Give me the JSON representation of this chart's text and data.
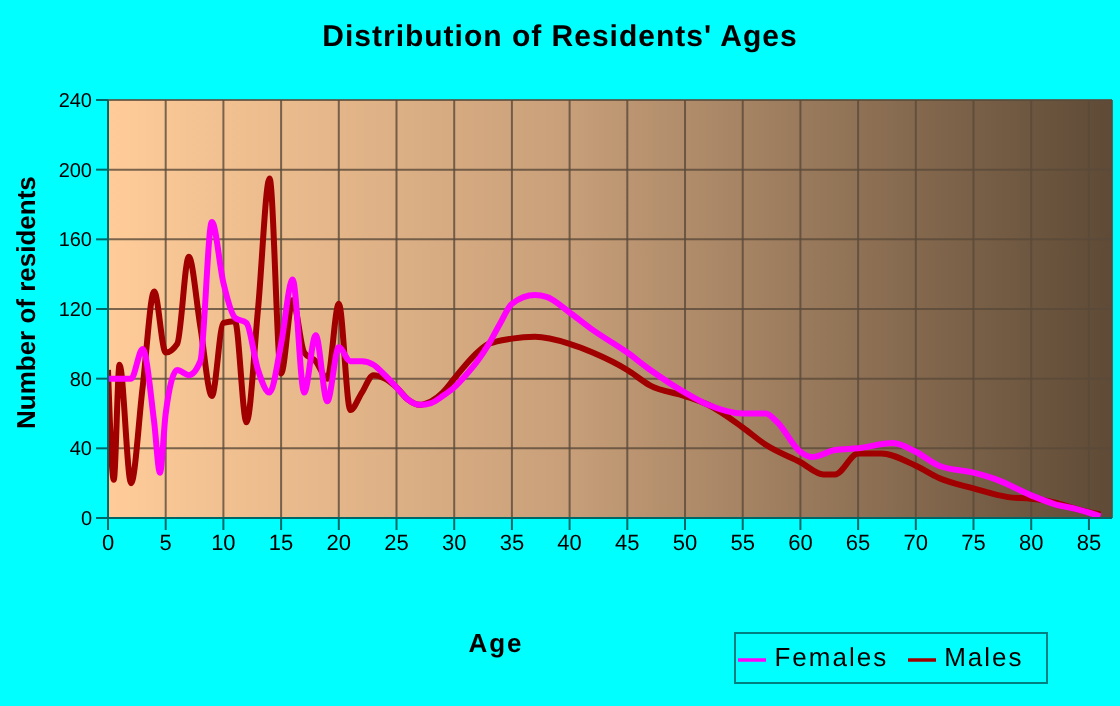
{
  "chart_data": {
    "type": "line",
    "title": "Distribution of Residents' Ages",
    "xlabel": "Age",
    "ylabel": "Number of residents",
    "xlim": [
      0,
      87
    ],
    "xticks": [
      0,
      5,
      10,
      15,
      20,
      25,
      30,
      35,
      40,
      45,
      50,
      55,
      60,
      65,
      70,
      75,
      80,
      85
    ],
    "ylim": [
      0,
      240
    ],
    "yticks": [
      0,
      40,
      80,
      120,
      160,
      200,
      240
    ],
    "grid": true,
    "legend": "bottom right",
    "marker": "none",
    "line_style": "solid",
    "series": [
      {
        "name": "Males",
        "color": "#a00000",
        "x": [
          0,
          0.5,
          1,
          2,
          3,
          4,
          5,
          6,
          7,
          8,
          9,
          10,
          11,
          12,
          13,
          14,
          15,
          16,
          17,
          18,
          19,
          20,
          21,
          22,
          23,
          24,
          25,
          26,
          27,
          28,
          29,
          30,
          31,
          32,
          33,
          35,
          37,
          40,
          42,
          45,
          47,
          50,
          52,
          55,
          57,
          60,
          62,
          63,
          65,
          67,
          70,
          72,
          75,
          78,
          80,
          82,
          84,
          86
        ],
        "values": [
          85,
          22,
          88,
          20,
          75,
          130,
          95,
          100,
          150,
          110,
          70,
          112,
          113,
          55,
          120,
          195,
          83,
          125,
          95,
          90,
          80,
          123,
          62,
          72,
          82,
          80,
          75,
          68,
          65,
          67,
          72,
          80,
          88,
          95,
          100,
          103,
          104,
          100,
          95,
          85,
          76,
          70,
          65,
          52,
          42,
          32,
          25,
          25,
          37,
          37,
          30,
          23,
          17,
          12,
          11,
          9,
          5,
          2
        ]
      },
      {
        "name": "Females",
        "color": "#ff00ff",
        "x": [
          0,
          1,
          2,
          3,
          4,
          4.5,
          5,
          6,
          7,
          8,
          9,
          10,
          11,
          12,
          13,
          14,
          15,
          16,
          17,
          18,
          19,
          20,
          21,
          22,
          23,
          24,
          25,
          26,
          27,
          28,
          29,
          30,
          31,
          32,
          33,
          34,
          35,
          37,
          38,
          40,
          42,
          45,
          47,
          50,
          52,
          55,
          57,
          58,
          60,
          61,
          63,
          65,
          68,
          70,
          72,
          75,
          77,
          80,
          82,
          84,
          86
        ],
        "values": [
          80,
          80,
          80,
          97,
          55,
          26,
          60,
          85,
          82,
          90,
          170,
          135,
          115,
          112,
          85,
          72,
          100,
          137,
          72,
          105,
          67,
          98,
          90,
          90,
          88,
          82,
          75,
          68,
          65,
          66,
          70,
          75,
          82,
          90,
          100,
          112,
          123,
          128,
          127,
          118,
          108,
          95,
          85,
          72,
          65,
          60,
          60,
          55,
          38,
          35,
          39,
          40,
          43,
          38,
          30,
          26,
          22,
          13,
          8,
          5,
          1
        ]
      }
    ]
  }
}
